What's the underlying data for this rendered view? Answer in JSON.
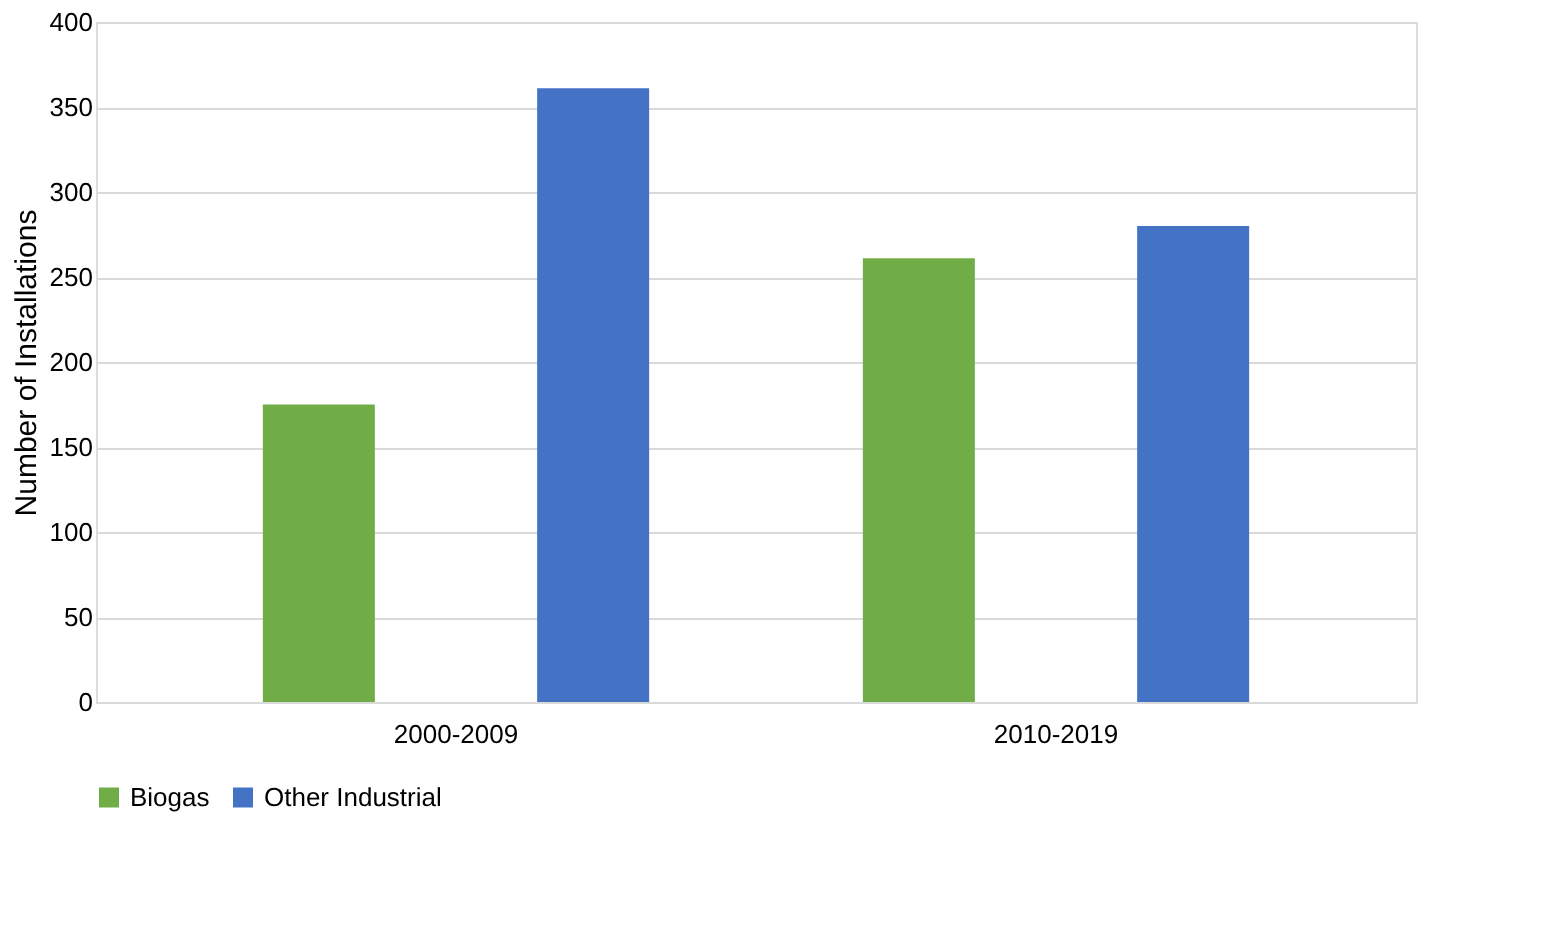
{
  "chart_data": {
    "type": "bar",
    "ylabel": "Number of Installations",
    "categories": [
      "2000-2009",
      "2010-2019"
    ],
    "series": [
      {
        "name": "Biogas",
        "color": "#70ad47",
        "values": [
          175,
          261
        ]
      },
      {
        "name": "Other Industrial",
        "color": "#4472c4",
        "values": [
          361,
          280
        ]
      }
    ],
    "ylim": [
      0,
      400
    ],
    "yticks": [
      0,
      50,
      100,
      150,
      200,
      250,
      300,
      350,
      400
    ],
    "grid": "y",
    "legend": "bottom"
  }
}
